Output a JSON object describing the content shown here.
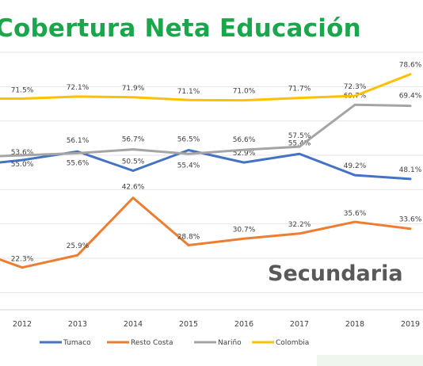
{
  "chart_data": {
    "type": "line",
    "title": "Cobertura Neta Educación",
    "annotation": "Secundaria",
    "categories": [
      "2012",
      "2013",
      "2014",
      "2015",
      "2016",
      "2017",
      "2018",
      "2019"
    ],
    "ylim": [
      10,
      85
    ],
    "grid": "horizontal",
    "legend_position": "bottom",
    "series": [
      {
        "name": "Tumaco",
        "color": "#4472c4",
        "values": [
          53.6,
          56.1,
          50.5,
          56.5,
          52.9,
          55.4,
          49.2,
          48.1
        ],
        "labels": [
          "53.6%",
          "56.1%",
          "50.5%",
          "56.5%",
          "52.9%",
          "55.4%",
          "49.2%",
          "48.1%"
        ]
      },
      {
        "name": "Resto Costa",
        "color": "#ed7d31",
        "values": [
          22.3,
          25.9,
          42.6,
          28.8,
          30.7,
          32.2,
          35.6,
          33.6
        ],
        "labels": [
          "22.3%",
          "25.9%",
          "42.6%",
          "28.8%",
          "30.7%",
          "32.2%",
          "35.6%",
          "33.6%"
        ]
      },
      {
        "name": "Nariño",
        "color": "#a5a5a5",
        "values": [
          55.0,
          55.6,
          56.7,
          55.4,
          56.6,
          57.5,
          69.7,
          69.4
        ],
        "labels": [
          "55.0%",
          "55.6%",
          "56.7%",
          "55.4%",
          "56.6%",
          "57.5%",
          "69.7%",
          "69.4%"
        ]
      },
      {
        "name": "Colombia",
        "color": "#ffc000",
        "values": [
          71.5,
          72.1,
          71.9,
          71.1,
          71.0,
          71.7,
          72.3,
          78.6
        ],
        "labels": [
          "71.5%",
          "72.1%",
          "71.9%",
          "71.1%",
          "71.0%",
          "71.7%",
          "72.3%",
          "78.6%"
        ]
      }
    ]
  }
}
